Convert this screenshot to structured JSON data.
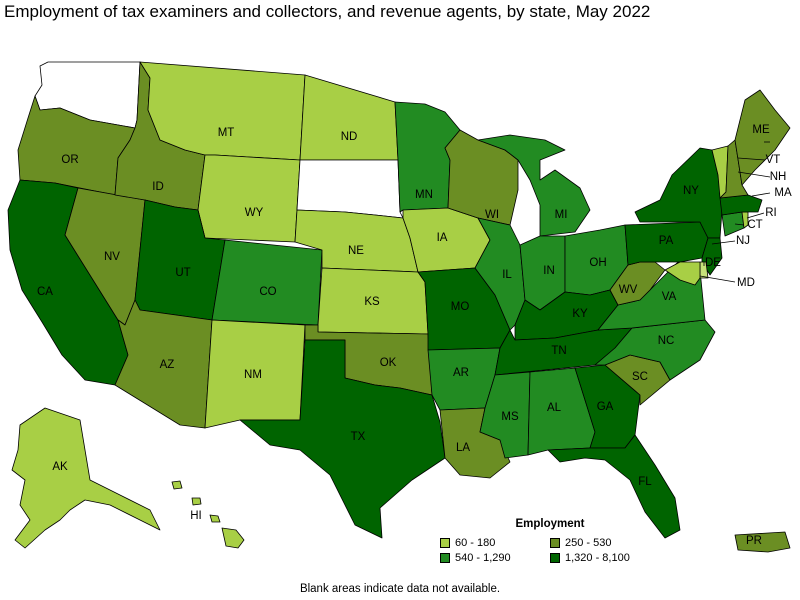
{
  "title": "Employment of tax examiners and collectors, and revenue agents, by state, May 2022",
  "colors": {
    "c1": "#a8cf45",
    "c2": "#6b8e23",
    "c3": "#228b22",
    "c4": "#006400",
    "none": "#ffffff",
    "light_de": "#c6e27a"
  },
  "legend": {
    "title": "Employment",
    "items": [
      {
        "label": "60 - 180",
        "color": "#a8cf45"
      },
      {
        "label": "250 - 530",
        "color": "#6b8e23"
      },
      {
        "label": "540 - 1,290",
        "color": "#228b22"
      },
      {
        "label": "1,320 - 8,100",
        "color": "#006400"
      }
    ]
  },
  "footnote": "Blank areas indicate data not available.",
  "states": [
    {
      "abbr": "WA",
      "label": "",
      "class": "none"
    },
    {
      "abbr": "OR",
      "label": "OR",
      "class": "c2"
    },
    {
      "abbr": "CA",
      "label": "CA",
      "class": "c4"
    },
    {
      "abbr": "NV",
      "label": "NV",
      "class": "c2"
    },
    {
      "abbr": "ID",
      "label": "ID",
      "class": "c2"
    },
    {
      "abbr": "MT",
      "label": "MT",
      "class": "c1"
    },
    {
      "abbr": "WY",
      "label": "WY",
      "class": "c1"
    },
    {
      "abbr": "UT",
      "label": "UT",
      "class": "c4"
    },
    {
      "abbr": "AZ",
      "label": "AZ",
      "class": "c2"
    },
    {
      "abbr": "CO",
      "label": "CO",
      "class": "c3"
    },
    {
      "abbr": "NM",
      "label": "NM",
      "class": "c1"
    },
    {
      "abbr": "ND",
      "label": "ND",
      "class": "c1"
    },
    {
      "abbr": "SD",
      "label": "",
      "class": "none"
    },
    {
      "abbr": "NE",
      "label": "NE",
      "class": "c1"
    },
    {
      "abbr": "KS",
      "label": "KS",
      "class": "c1"
    },
    {
      "abbr": "OK",
      "label": "OK",
      "class": "c2"
    },
    {
      "abbr": "TX",
      "label": "TX",
      "class": "c4"
    },
    {
      "abbr": "MN",
      "label": "MN",
      "class": "c3"
    },
    {
      "abbr": "IA",
      "label": "IA",
      "class": "c1"
    },
    {
      "abbr": "MO",
      "label": "MO",
      "class": "c4"
    },
    {
      "abbr": "AR",
      "label": "AR",
      "class": "c3"
    },
    {
      "abbr": "LA",
      "label": "LA",
      "class": "c2"
    },
    {
      "abbr": "WI",
      "label": "WI",
      "class": "c2"
    },
    {
      "abbr": "IL",
      "label": "IL",
      "class": "c3"
    },
    {
      "abbr": "MI",
      "label": "MI",
      "class": "c3"
    },
    {
      "abbr": "IN",
      "label": "IN",
      "class": "c3"
    },
    {
      "abbr": "OH",
      "label": "OH",
      "class": "c3"
    },
    {
      "abbr": "KY",
      "label": "KY",
      "class": "c4"
    },
    {
      "abbr": "TN",
      "label": "TN",
      "class": "c4"
    },
    {
      "abbr": "MS",
      "label": "MS",
      "class": "c3"
    },
    {
      "abbr": "AL",
      "label": "AL",
      "class": "c3"
    },
    {
      "abbr": "GA",
      "label": "GA",
      "class": "c4"
    },
    {
      "abbr": "FL",
      "label": "FL",
      "class": "c4"
    },
    {
      "abbr": "SC",
      "label": "SC",
      "class": "c2"
    },
    {
      "abbr": "NC",
      "label": "NC",
      "class": "c3"
    },
    {
      "abbr": "VA",
      "label": "VA",
      "class": "c3"
    },
    {
      "abbr": "WV",
      "label": "WV",
      "class": "c2"
    },
    {
      "abbr": "PA",
      "label": "PA",
      "class": "c4"
    },
    {
      "abbr": "NY",
      "label": "NY",
      "class": "c4"
    },
    {
      "abbr": "NJ",
      "label": "NJ",
      "class": "c4"
    },
    {
      "abbr": "DE",
      "label": "DE",
      "class": "light_de"
    },
    {
      "abbr": "MD",
      "label": "MD",
      "class": "c1"
    },
    {
      "abbr": "CT",
      "label": "CT",
      "class": "c3"
    },
    {
      "abbr": "RI",
      "label": "RI",
      "class": "c1"
    },
    {
      "abbr": "MA",
      "label": "MA",
      "class": "c4"
    },
    {
      "abbr": "VT",
      "label": "VT",
      "class": "c1"
    },
    {
      "abbr": "NH",
      "label": "NH",
      "class": "c2"
    },
    {
      "abbr": "ME",
      "label": "ME",
      "class": "c2"
    },
    {
      "abbr": "AK",
      "label": "AK",
      "class": "c1"
    },
    {
      "abbr": "HI",
      "label": "HI",
      "class": "c1"
    },
    {
      "abbr": "PR",
      "label": "PR",
      "class": "c2"
    }
  ]
}
